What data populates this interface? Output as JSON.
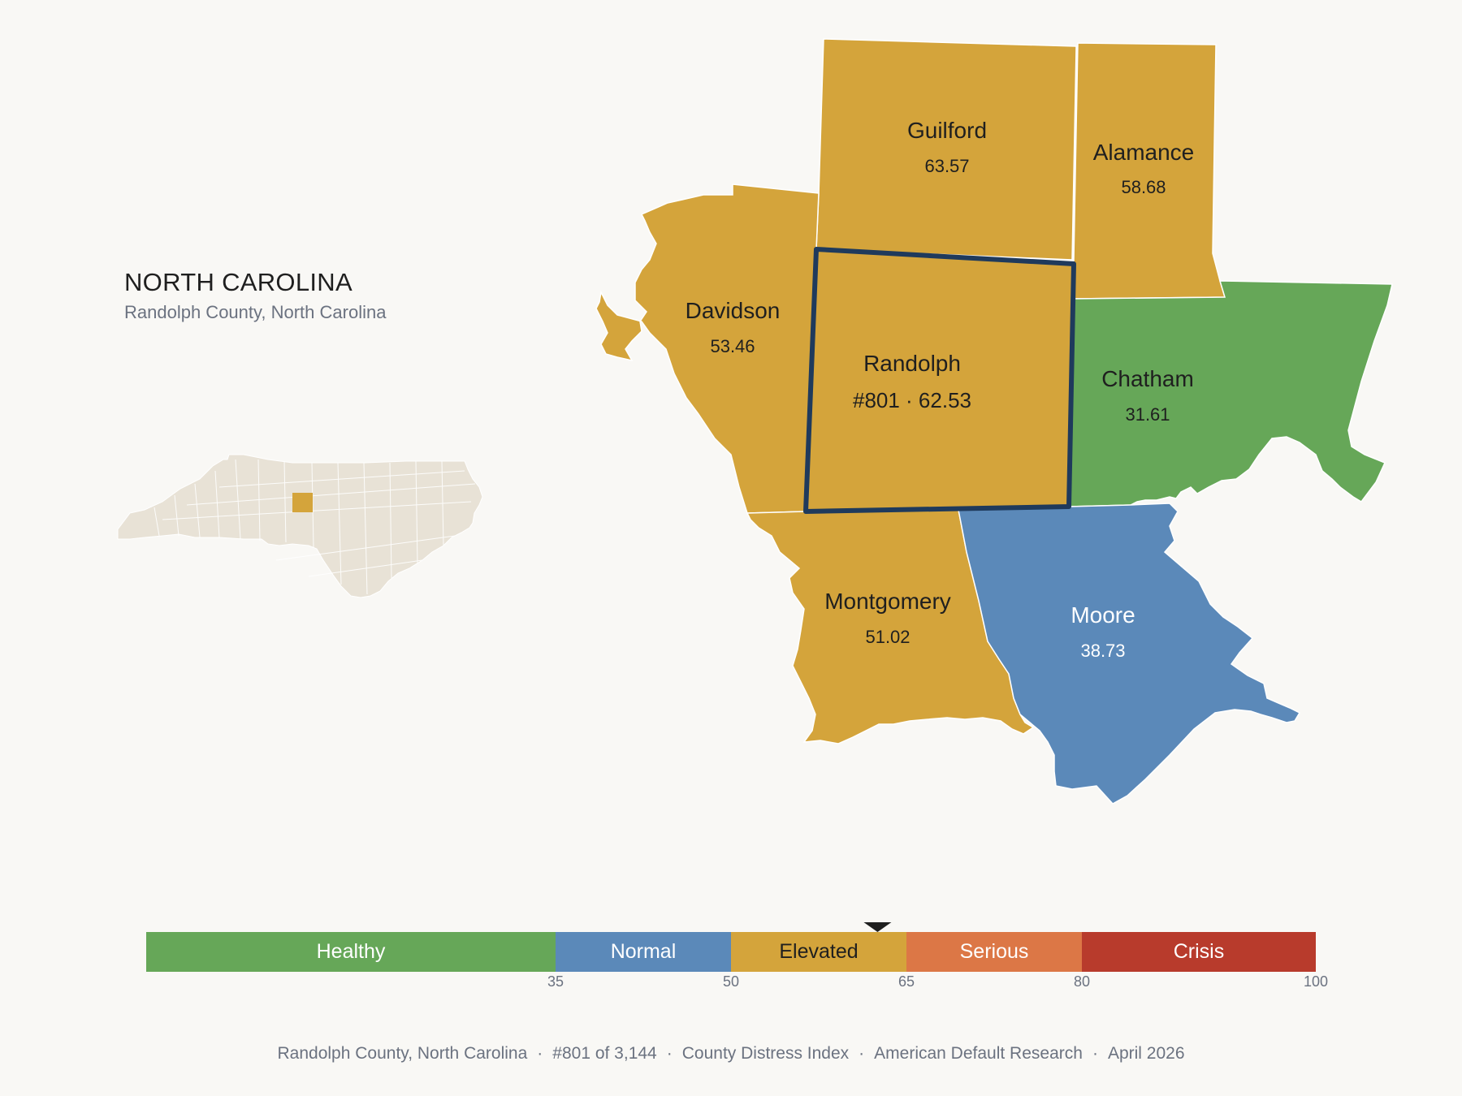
{
  "header": {
    "state": "NORTH CAROLINA",
    "subtitle": "Randolph County, North Carolina"
  },
  "colors": {
    "healthy": "#66a758",
    "normal": "#5b89b9",
    "elevated": "#d4a43b",
    "serious": "#dc7746",
    "crisis": "#b83b2c",
    "inset_land": "#e8e2d6",
    "highlight_border": "#1f3a5c"
  },
  "counties": [
    {
      "name": "Guilford",
      "value": "63.57",
      "status": "elevated"
    },
    {
      "name": "Alamance",
      "value": "58.68",
      "status": "elevated"
    },
    {
      "name": "Davidson",
      "value": "53.46",
      "status": "elevated"
    },
    {
      "name": "Randolph",
      "value": "#801 · 62.53",
      "status": "elevated",
      "selected": true
    },
    {
      "name": "Chatham",
      "value": "31.61",
      "status": "healthy"
    },
    {
      "name": "Montgomery",
      "value": "51.02",
      "status": "elevated"
    },
    {
      "name": "Moore",
      "value": "38.73",
      "status": "normal"
    }
  ],
  "scale": {
    "bands": [
      {
        "label": "Healthy",
        "from": 0,
        "to": 35
      },
      {
        "label": "Normal",
        "from": 35,
        "to": 50
      },
      {
        "label": "Elevated",
        "from": 50,
        "to": 65
      },
      {
        "label": "Serious",
        "from": 65,
        "to": 80
      },
      {
        "label": "Crisis",
        "from": 80,
        "to": 100
      }
    ],
    "ticks": [
      "35",
      "50",
      "65",
      "80",
      "100"
    ],
    "marker_value": 62.53
  },
  "footer": {
    "county": "Randolph County, North Carolina",
    "rank": "#801 of 3,144",
    "index": "County Distress Index",
    "source": "American Default Research",
    "date": "April 2026",
    "separator": "·"
  }
}
